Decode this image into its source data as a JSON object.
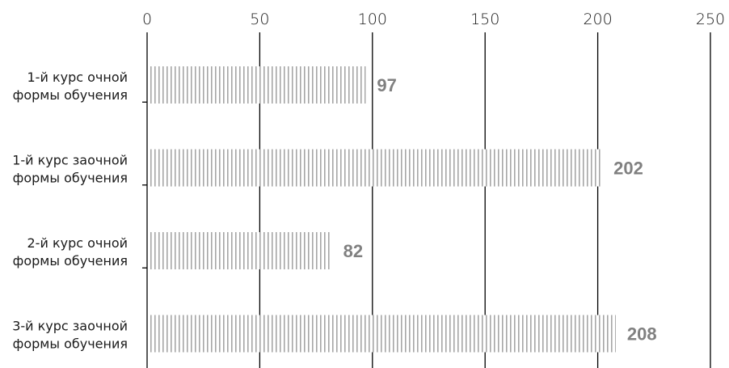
{
  "chart_data": {
    "type": "bar",
    "orientation": "horizontal",
    "categories": [
      [
        "1-й курс очной",
        "формы обучения"
      ],
      [
        "1-й курс заочной",
        "формы обучения"
      ],
      [
        "2-й курс очной",
        "формы обучения"
      ],
      [
        "3-й курс заочной",
        "формы обучения"
      ]
    ],
    "values": [
      97,
      202,
      82,
      208
    ],
    "data_labels": [
      "97",
      "202",
      "82",
      "208"
    ],
    "xlim": [
      0,
      250
    ],
    "x_ticks": [
      0,
      50,
      100,
      150,
      200,
      250
    ],
    "x_tick_labels": [
      "0",
      "50",
      "100",
      "150",
      "200",
      "250"
    ],
    "x_axis_position": "top",
    "grid": "vertical",
    "bar_pattern": "vertical-stripes",
    "bar_color": "#a6a6a6",
    "label_color": "#808080",
    "axis_color": "#000000",
    "title": "",
    "xlabel": "",
    "ylabel": ""
  }
}
